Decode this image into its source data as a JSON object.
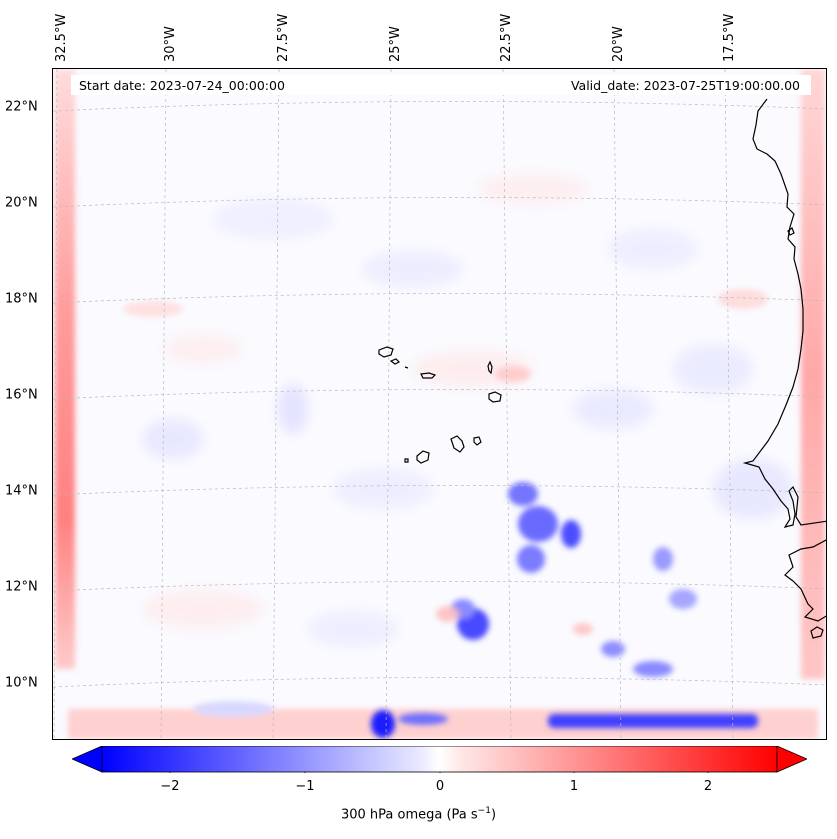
{
  "map": {
    "start_label": "Start date: 2023-07-24_00:00:00",
    "valid_label": "Valid_date: 2023-07-25T19:00:00.00",
    "longitude_labels": [
      "32.5°W",
      "30°W",
      "27.5°W",
      "25°W",
      "22.5°W",
      "20°W",
      "17.5°W"
    ],
    "latitude_labels": [
      "22°N",
      "20°N",
      "18°N",
      "16°N",
      "14°N",
      "12°N",
      "10°N"
    ],
    "coastline_color": "#000000",
    "gridline_color": "#bbbbbb"
  },
  "colorbar": {
    "tick_labels": [
      "−2",
      "−1",
      "0",
      "1",
      "2"
    ],
    "title_main": "300 hPa omega (Pa s",
    "title_exponent": "−1",
    "title_close": ")",
    "min_color": "#0000ff",
    "mid_color": "#ffffff",
    "max_color": "#ff0000"
  }
}
